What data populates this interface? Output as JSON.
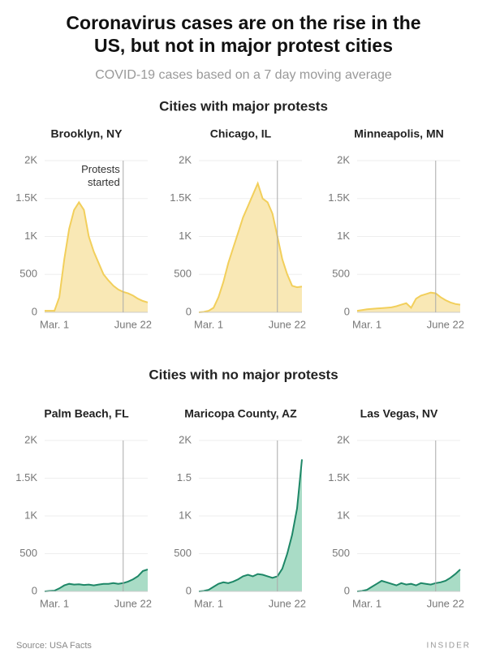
{
  "title": "Coronavirus cases are on the rise in the US, but not in major protest cities",
  "subtitle": "COVID-19 cases based on a 7 day moving average",
  "groups": [
    "Cities with major protests",
    "Cities with no major protests"
  ],
  "source": "Source: USA Facts",
  "brand": "INSIDER",
  "chart_data": [
    {
      "type": "area",
      "title": "Brooklyn, NY",
      "annotation": "Protests started",
      "protests_x": 16,
      "categories": [
        null,
        null,
        "Mar. 1",
        null,
        null,
        null,
        null,
        null,
        null,
        null,
        null,
        null,
        null,
        null,
        null,
        null,
        null,
        null,
        "June 22",
        null,
        null,
        null
      ],
      "values": [
        20,
        20,
        20,
        200,
        700,
        1100,
        1350,
        1450,
        1350,
        1000,
        800,
        650,
        500,
        420,
        350,
        300,
        270,
        250,
        220,
        180,
        150,
        130
      ],
      "color": "#f2cf5b",
      "fill": "#f9e8b5",
      "ylim": [
        0,
        2000
      ],
      "yticks": [
        0,
        500,
        {
          "value": 1000,
          "label": "1K"
        },
        {
          "value": 1500,
          "label": "1.5K"
        },
        {
          "value": 2000,
          "label": "2K"
        }
      ],
      "grid": true
    },
    {
      "type": "area",
      "title": "Chicago, IL",
      "protests_x": 16,
      "categories": [
        null,
        null,
        "Mar. 1",
        null,
        null,
        null,
        null,
        null,
        null,
        null,
        null,
        null,
        null,
        null,
        null,
        null,
        null,
        null,
        "June 22",
        null,
        null,
        null
      ],
      "values": [
        0,
        5,
        20,
        60,
        200,
        400,
        650,
        850,
        1050,
        1250,
        1400,
        1550,
        1700,
        1500,
        1450,
        1300,
        1000,
        700,
        500,
        350,
        330,
        340
      ],
      "color": "#f2cf5b",
      "fill": "#f9e8b5",
      "ylim": [
        0,
        2000
      ],
      "yticks": [
        0,
        500,
        {
          "value": 1000,
          "label": "1K"
        },
        {
          "value": 1500,
          "label": "1.5K"
        },
        {
          "value": 2000,
          "label": "2K"
        }
      ],
      "grid": true
    },
    {
      "type": "area",
      "title": "Minneapolis, MN",
      "protests_x": 16,
      "categories": [
        null,
        null,
        "Mar. 1",
        null,
        null,
        null,
        null,
        null,
        null,
        null,
        null,
        null,
        null,
        null,
        null,
        null,
        null,
        null,
        "June 22",
        null,
        null,
        null
      ],
      "values": [
        20,
        30,
        40,
        45,
        50,
        55,
        60,
        65,
        80,
        100,
        120,
        60,
        180,
        220,
        240,
        260,
        250,
        200,
        160,
        130,
        110,
        100
      ],
      "color": "#f2cf5b",
      "fill": "#f9e8b5",
      "ylim": [
        0,
        2000
      ],
      "yticks": [
        0,
        500,
        {
          "value": 1000,
          "label": "1K"
        },
        {
          "value": 1500,
          "label": "1.5K"
        },
        {
          "value": 2000,
          "label": "2K"
        }
      ],
      "grid": true
    },
    {
      "type": "area",
      "title": "Palm Beach, FL",
      "protests_x": 16,
      "categories": [
        null,
        null,
        "Mar. 1",
        null,
        null,
        null,
        null,
        null,
        null,
        null,
        null,
        null,
        null,
        null,
        null,
        null,
        null,
        null,
        "June 22",
        null,
        null,
        null
      ],
      "values": [
        0,
        5,
        10,
        40,
        80,
        100,
        90,
        95,
        85,
        90,
        80,
        90,
        100,
        100,
        110,
        100,
        110,
        130,
        160,
        200,
        270,
        290
      ],
      "color": "#1e8767",
      "fill": "#a9dcc6",
      "ylim": [
        0,
        2000
      ],
      "yticks": [
        0,
        500,
        {
          "value": 1000,
          "label": "1K"
        },
        {
          "value": 1500,
          "label": "1.5K"
        },
        {
          "value": 2000,
          "label": "2K"
        }
      ],
      "grid": true
    },
    {
      "type": "area",
      "title": "Maricopa County, AZ",
      "protests_x": 16,
      "categories": [
        null,
        null,
        "Mar. 1",
        null,
        null,
        null,
        null,
        null,
        null,
        null,
        null,
        null,
        null,
        null,
        null,
        null,
        null,
        null,
        "June 22",
        null,
        null,
        null
      ],
      "values": [
        0,
        5,
        20,
        60,
        100,
        120,
        110,
        130,
        160,
        200,
        220,
        200,
        230,
        220,
        200,
        180,
        200,
        300,
        500,
        750,
        1100,
        1750
      ],
      "color": "#1e8767",
      "fill": "#a9dcc6",
      "ylim": [
        0,
        2000
      ],
      "yticks": [
        0,
        500,
        {
          "value": 1000,
          "label": "1K"
        },
        {
          "value": 1500,
          "label": "1.5"
        },
        {
          "value": 2000,
          "label": "2K"
        }
      ],
      "grid": true
    },
    {
      "type": "area",
      "title": "Las Vegas, NV",
      "protests_x": 16,
      "categories": [
        null,
        null,
        "Mar. 1",
        null,
        null,
        null,
        null,
        null,
        null,
        null,
        null,
        null,
        null,
        null,
        null,
        null,
        null,
        null,
        "June 22",
        null,
        null,
        null
      ],
      "values": [
        0,
        5,
        20,
        60,
        100,
        140,
        120,
        100,
        80,
        110,
        90,
        100,
        80,
        110,
        100,
        90,
        110,
        120,
        140,
        180,
        230,
        290
      ],
      "color": "#1e8767",
      "fill": "#a9dcc6",
      "ylim": [
        0,
        2000
      ],
      "yticks": [
        0,
        500,
        {
          "value": 1000,
          "label": "1K"
        },
        {
          "value": 1500,
          "label": "1.5K"
        },
        {
          "value": 2000,
          "label": "2K"
        }
      ],
      "grid": true
    }
  ]
}
